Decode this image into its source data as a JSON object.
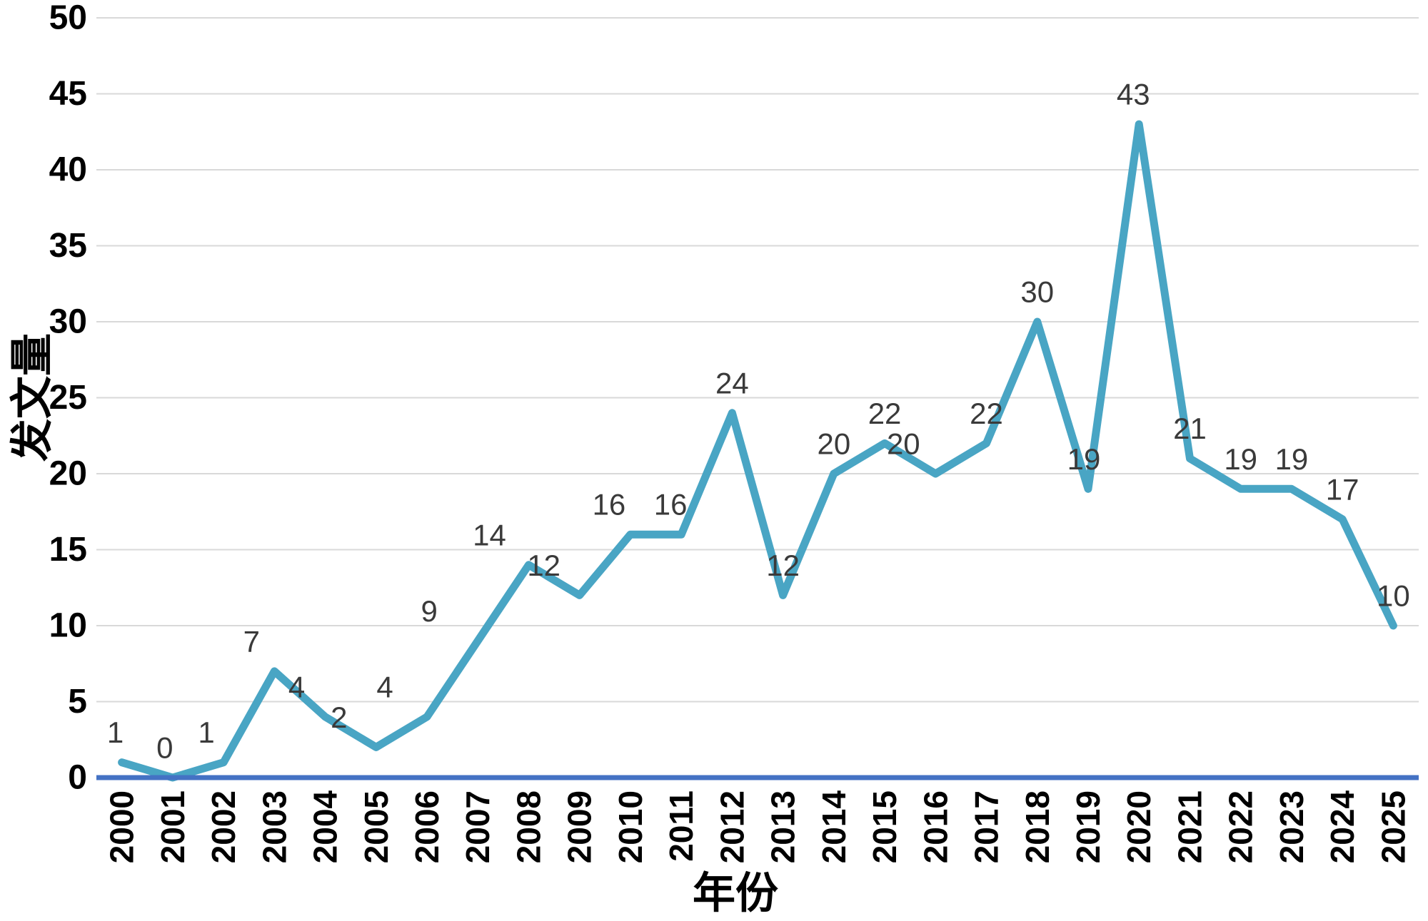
{
  "chart_data": {
    "type": "line",
    "title": "",
    "xlabel": "年份",
    "ylabel": "发文量",
    "categories": [
      "2000",
      "2001",
      "2002",
      "2003",
      "2004",
      "2005",
      "2006",
      "2007",
      "2008",
      "2009",
      "2010",
      "2011",
      "2012",
      "2013",
      "2014",
      "2015",
      "2016",
      "2017",
      "2018",
      "2019",
      "2020",
      "2021",
      "2022",
      "2023",
      "2024",
      "2025"
    ],
    "series": [
      {
        "name": "发文量",
        "values": [
          1,
          0,
          1,
          7,
          4,
          2,
          4,
          9,
          14,
          12,
          16,
          16,
          24,
          12,
          20,
          22,
          20,
          22,
          30,
          19,
          43,
          21,
          19,
          19,
          17,
          10
        ]
      }
    ],
    "ylim": [
      0,
      50
    ],
    "ytick_step": 5,
    "yticks": [
      0,
      5,
      10,
      15,
      20,
      25,
      30,
      35,
      40,
      45,
      50
    ],
    "grid": "horizontal",
    "legend": "none",
    "data_labels_visible": true,
    "colors": {
      "line": "#49A5C4",
      "baseline": "#4472C4",
      "gridline": "#D9D9D9",
      "data_label": "#3A3A3A",
      "tick_label": "#000000",
      "axis_title": "#000000"
    }
  }
}
